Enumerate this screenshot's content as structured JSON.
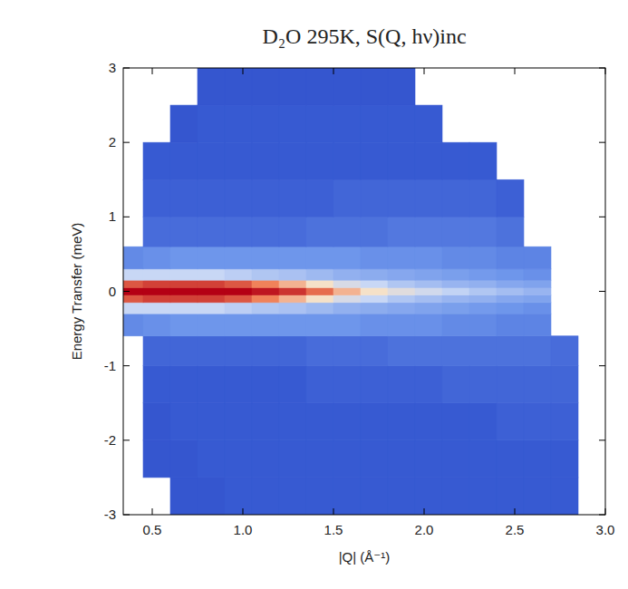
{
  "chart_data": {
    "type": "heatmap",
    "title": "D₂O 295K, S(Q, hν)inc",
    "x_label": "|Q| (Å⁻¹)",
    "y_label": "Energy Transfer (meV)",
    "x": [
      0.3,
      0.45,
      0.6,
      0.75,
      0.9,
      1.05,
      1.2,
      1.35,
      1.5,
      1.65,
      1.8,
      1.95,
      2.1,
      2.25,
      2.4,
      2.55,
      2.7,
      2.85,
      3.0
    ],
    "y": [
      -3,
      -2.5,
      -2,
      -1.5,
      -1,
      -0.6,
      -0.3,
      -0.15,
      -0.05,
      0.05,
      0.15,
      0.3,
      0.6,
      1,
      1.5,
      2,
      2.5,
      3
    ],
    "cells": [
      [
        null,
        null,
        0.9,
        0.9,
        1.0,
        1.0,
        1.0,
        1.0,
        1.0,
        1.0,
        1.0,
        1.0,
        1.0,
        1.0,
        1.0,
        1.0,
        1.0,
        null
      ],
      [
        null,
        0.9,
        0.9,
        1.0,
        1.0,
        1.0,
        1.0,
        1.0,
        1.0,
        1.0,
        1.0,
        1.0,
        1.0,
        1.0,
        1.0,
        1.0,
        1.0,
        null
      ],
      [
        null,
        0.9,
        1.0,
        1.0,
        1.0,
        1.0,
        1.0,
        1.0,
        1.0,
        1.0,
        1.0,
        1.0,
        1.0,
        1.0,
        1.1,
        1.1,
        1.1,
        null
      ],
      [
        null,
        1.0,
        1.0,
        1.0,
        1.0,
        1.0,
        1.0,
        1.1,
        1.1,
        1.1,
        1.1,
        1.1,
        1.2,
        1.2,
        1.2,
        1.2,
        1.2,
        null
      ],
      [
        null,
        1.2,
        1.2,
        1.2,
        1.2,
        1.2,
        1.2,
        1.3,
        1.3,
        1.3,
        1.4,
        1.4,
        1.4,
        1.4,
        1.4,
        1.4,
        1.3,
        null
      ],
      [
        1.8,
        1.9,
        2.0,
        2.0,
        2.0,
        2.0,
        2.0,
        2.0,
        2.0,
        1.9,
        1.9,
        1.9,
        1.8,
        1.8,
        1.7,
        1.7,
        null,
        null
      ],
      [
        3.5,
        3.5,
        3.5,
        3.5,
        3.3,
        3.1,
        3.0,
        2.8,
        2.6,
        2.5,
        2.4,
        2.3,
        2.2,
        2.1,
        2.0,
        1.9,
        null,
        null
      ],
      [
        8.0,
        8.5,
        8.5,
        8.5,
        8.0,
        7.0,
        6.0,
        5.0,
        4.0,
        3.5,
        3.1,
        2.9,
        2.7,
        2.6,
        2.4,
        2.3,
        null,
        null
      ],
      [
        10,
        10,
        10,
        10,
        10,
        9.5,
        8.8,
        7.5,
        6.0,
        5.0,
        4.3,
        3.8,
        3.4,
        3.1,
        2.9,
        2.7,
        null,
        null
      ],
      [
        8.0,
        8.5,
        8.5,
        8.5,
        8.0,
        7.0,
        6.0,
        5.0,
        4.0,
        3.5,
        3.1,
        2.9,
        2.7,
        2.6,
        2.4,
        2.3,
        null,
        null
      ],
      [
        3.5,
        3.5,
        3.5,
        3.5,
        3.3,
        3.1,
        3.0,
        2.8,
        2.6,
        2.5,
        2.4,
        2.3,
        2.2,
        2.1,
        2.0,
        1.9,
        null,
        null
      ],
      [
        1.8,
        1.9,
        2.0,
        2.0,
        2.0,
        2.0,
        2.0,
        2.0,
        2.0,
        1.9,
        1.9,
        1.9,
        1.8,
        1.8,
        1.7,
        1.7,
        null,
        null
      ],
      [
        null,
        1.3,
        1.3,
        1.3,
        1.3,
        1.3,
        1.3,
        1.4,
        1.4,
        1.4,
        1.5,
        1.5,
        1.5,
        1.5,
        1.4,
        null,
        null,
        null
      ],
      [
        null,
        1.1,
        1.1,
        1.1,
        1.1,
        1.1,
        1.1,
        1.1,
        1.2,
        1.2,
        1.2,
        1.2,
        1.2,
        1.2,
        1.1,
        null,
        null,
        null
      ],
      [
        null,
        1.0,
        1.0,
        1.0,
        1.0,
        1.0,
        1.0,
        1.0,
        1.0,
        1.0,
        1.0,
        1.0,
        1.0,
        1.0,
        null,
        null,
        null,
        null
      ],
      [
        null,
        null,
        0.9,
        1.0,
        1.0,
        1.0,
        1.0,
        1.0,
        1.0,
        1.0,
        1.0,
        1.0,
        null,
        null,
        null,
        null,
        null,
        null
      ],
      [
        null,
        null,
        null,
        0.9,
        0.9,
        0.9,
        0.9,
        0.9,
        0.9,
        0.9,
        0.9,
        null,
        null,
        null,
        null,
        null,
        null,
        null
      ]
    ],
    "zlim": [
      0,
      10
    ],
    "xlim": [
      0.34,
      3.0
    ],
    "ylim": [
      -3,
      3
    ],
    "xticks": [
      0.5,
      {
        "value": 1,
        "label": "1.0"
      },
      1.5,
      {
        "value": 2,
        "label": "2.0"
      },
      2.5,
      {
        "value": 3,
        "label": "3.0"
      }
    ],
    "yticks": [
      -3,
      -2,
      -1,
      0,
      1,
      2,
      3
    ],
    "grid": false
  }
}
